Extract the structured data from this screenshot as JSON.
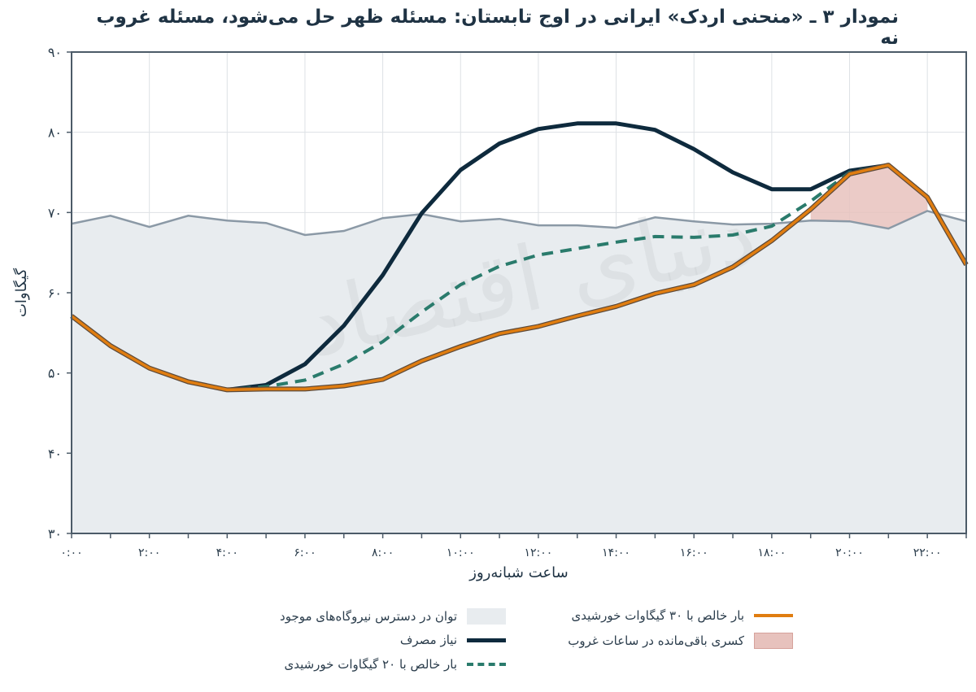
{
  "title": "نمودار ۳ ـ «منحنی اردک» ایرانی در اوج تابستان: مسئله ظهر حل می‌شود، مسئله غروب نه",
  "watermark": "دنیای اقتصاد",
  "chart_data": {
    "type": "line",
    "xlabel": "ساعت شبانه‌روز",
    "ylabel": "گیگاوات",
    "ylim": [
      30,
      90
    ],
    "xlim": [
      0,
      23
    ],
    "yticks": [
      30,
      40,
      50,
      60,
      70,
      80,
      90
    ],
    "ytick_labels": [
      "۳۰",
      "۴۰",
      "۵۰",
      "۶۰",
      "۷۰",
      "۸۰",
      "۹۰"
    ],
    "xticks": [
      0,
      2,
      4,
      6,
      8,
      10,
      12,
      14,
      16,
      18,
      20,
      22
    ],
    "xtick_labels": [
      "۰:۰۰",
      "۲:۰۰",
      "۴:۰۰",
      "۶:۰۰",
      "۸:۰۰",
      "۱۰:۰۰",
      "۱۲:۰۰",
      "۱۴:۰۰",
      "۱۶:۰۰",
      "۱۸:۰۰",
      "۲۰:۰۰",
      "۲۲:۰۰"
    ],
    "grid": true,
    "legend_position": "bottom",
    "x": [
      0,
      1,
      2,
      3,
      4,
      5,
      6,
      7,
      8,
      9,
      10,
      11,
      12,
      13,
      14,
      15,
      16,
      17,
      18,
      19,
      20,
      21,
      22,
      23
    ],
    "series": [
      {
        "name": "توان در دسترس نیروگاه‌های موجود",
        "style": "area",
        "color": "#e8ecef",
        "values": [
          68.6,
          69.6,
          68.2,
          69.6,
          69.0,
          68.7,
          67.2,
          67.7,
          69.3,
          69.8,
          68.9,
          69.2,
          68.4,
          68.4,
          68.1,
          69.4,
          68.9,
          68.5,
          68.6,
          69.0,
          68.9,
          68.0,
          70.2,
          68.9
        ]
      },
      {
        "name": "نیاز مصرف",
        "style": "line",
        "color": "#0e2a3d",
        "values": [
          57.1,
          53.4,
          50.6,
          48.9,
          47.9,
          48.5,
          51.1,
          55.9,
          62.2,
          69.9,
          75.3,
          78.6,
          80.4,
          81.1,
          81.1,
          80.3,
          77.9,
          75.0,
          72.9,
          72.9,
          75.2,
          75.9,
          71.9,
          63.5
        ]
      },
      {
        "name": "بار خالص با ۲۰ گیگاوات خورشیدی",
        "style": "dashed",
        "color": "#2a7b6c",
        "values": [
          57.1,
          53.4,
          50.6,
          48.9,
          47.9,
          48.3,
          49.1,
          51.1,
          53.9,
          57.6,
          61.0,
          63.3,
          64.7,
          65.5,
          66.3,
          67.0,
          66.9,
          67.2,
          68.3,
          71.4,
          75.0,
          75.9,
          71.9,
          63.5
        ]
      },
      {
        "name": "بار خالص با ۳۰ گیگاوات خورشیدی",
        "style": "line",
        "color": "#e07d10",
        "values": [
          57.1,
          53.4,
          50.6,
          48.9,
          47.9,
          48.0,
          48.0,
          48.4,
          49.2,
          51.5,
          53.3,
          54.9,
          55.8,
          57.1,
          58.3,
          59.9,
          61.0,
          63.2,
          66.5,
          70.4,
          74.8,
          75.9,
          71.9,
          63.5
        ]
      },
      {
        "name": "کسری باقی‌مانده در ساعات غروب",
        "style": "band",
        "color": "#e7c2bd",
        "x": [
          19,
          20,
          21,
          22
        ],
        "lower": [
          69.0,
          68.9,
          68.0,
          70.2
        ],
        "upper": [
          70.4,
          74.8,
          75.9,
          71.9
        ]
      }
    ]
  }
}
